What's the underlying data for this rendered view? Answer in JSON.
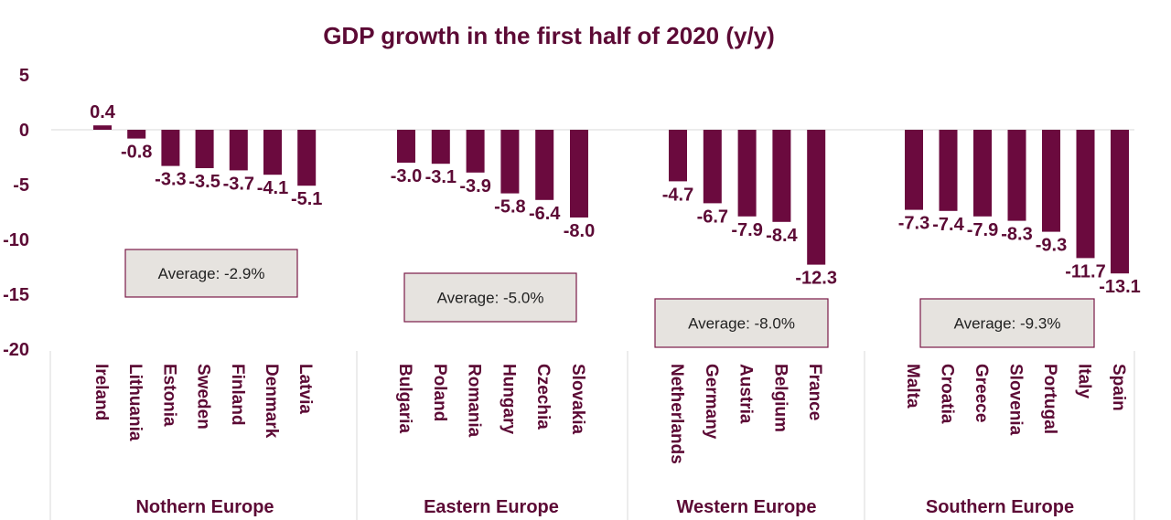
{
  "chart_data": {
    "type": "bar",
    "title": "GDP growth in the first half of 2020 (y/y)",
    "ylim": [
      -20,
      5
    ],
    "yticks": [
      "5",
      "0",
      "-5",
      "-10",
      "-15",
      "-20"
    ],
    "bar_color": "#6b0a3e",
    "groups": [
      {
        "name": "Nothern Europe",
        "average_label": "Average: -2.9%",
        "categories": [
          "Ireland",
          "Lithuania",
          "Estonia",
          "Sweden",
          "Finland",
          "Denmark",
          "Latvia"
        ],
        "values": [
          0.4,
          -0.8,
          -3.3,
          -3.5,
          -3.7,
          -4.1,
          -5.1
        ],
        "labels": [
          "0.4",
          "-0.8",
          "-3.3",
          "-3.5",
          "-3.7",
          "-4.1",
          "-5.1"
        ]
      },
      {
        "name": "Eastern Europe",
        "average_label": "Average: -5.0%",
        "categories": [
          "Bulgaria",
          "Poland",
          "Romania",
          "Hungary",
          "Czechia",
          "Slovakia"
        ],
        "values": [
          -3.0,
          -3.1,
          -3.9,
          -5.8,
          -6.4,
          -8.0
        ],
        "labels": [
          "-3.0",
          "-3.1",
          "-3.9",
          "-5.8",
          "-6.4",
          "-8.0"
        ]
      },
      {
        "name": "Western Europe",
        "average_label": "Average: -8.0%",
        "categories": [
          "Netherlands",
          "Germany",
          "Austria",
          "Belgium",
          "France"
        ],
        "values": [
          -4.7,
          -6.7,
          -7.9,
          -8.4,
          -12.3
        ],
        "labels": [
          "-4.7",
          "-6.7",
          "-7.9",
          "-8.4",
          "-12.3"
        ]
      },
      {
        "name": "Southern Europe",
        "average_label": "Average: -9.3%",
        "categories": [
          "Malta",
          "Croatia",
          "Greece",
          "Slovenia",
          "Portugal",
          "Italy",
          "Spain"
        ],
        "values": [
          -7.3,
          -7.4,
          -7.9,
          -8.3,
          -9.3,
          -11.7,
          -13.1
        ],
        "labels": [
          "-7.3",
          "-7.4",
          "-7.9",
          "-8.3",
          "-9.3",
          "-11.7",
          "-13.1"
        ]
      }
    ]
  }
}
